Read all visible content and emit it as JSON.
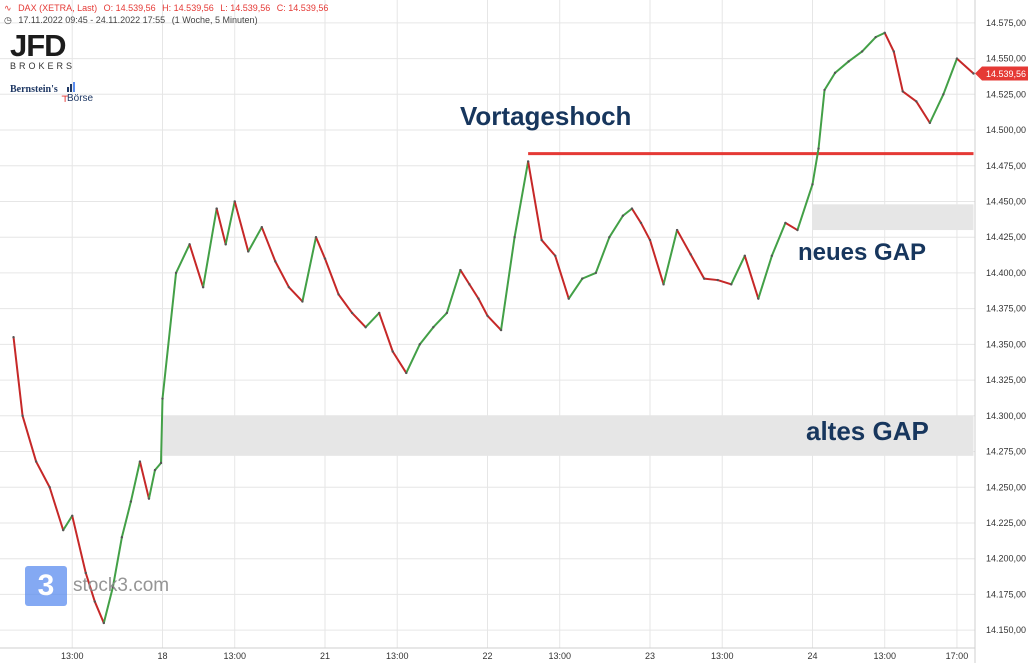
{
  "header": {
    "symbol": "DAX (XETRA, Last)",
    "open": "O: 14.539,56",
    "high": "H: 14.539,56",
    "low": "L: 14.539,56",
    "close": "C: 14.539,56",
    "range": "17.11.2022 09:45 - 24.11.2022 17:55",
    "interval": "(1 Woche, 5 Minuten)"
  },
  "branding": {
    "jfd": "JFD",
    "brokers": "BROKERS",
    "bernstein": "Bernstein's",
    "boerse": "Börse",
    "watermark_number": "3",
    "watermark_text": "stock3.com"
  },
  "colors": {
    "up": "#43a047",
    "down": "#c62828",
    "line": "#e53935",
    "gap": "#e6e6e6",
    "annotation": "#17365d",
    "grid": "#e6e6e6",
    "price_tag": "#e53935"
  },
  "chart_data": {
    "type": "line",
    "title": "",
    "xlabel": "",
    "ylabel": "",
    "ylim": [
      14137.5,
      14587.5
    ],
    "yticks": [
      "14.575,00",
      "14.550,00",
      "14.525,00",
      "14.500,00",
      "14.475,00",
      "14.450,00",
      "14.425,00",
      "14.400,00",
      "14.375,00",
      "14.350,00",
      "14.325,00",
      "14.300,00",
      "14.275,00",
      "14.250,00",
      "14.225,00",
      "14.200,00",
      "14.175,00",
      "14.150,00"
    ],
    "ytick_values": [
      14575,
      14550,
      14525,
      14500,
      14475,
      14450,
      14425,
      14400,
      14375,
      14350,
      14325,
      14300,
      14275,
      14250,
      14225,
      14200,
      14175,
      14150
    ],
    "xticks": [
      "13:00",
      "18",
      "13:00",
      "21",
      "13:00",
      "22",
      "13:00",
      "23",
      "13:00",
      "24",
      "13:00",
      "17:00"
    ],
    "current_price": "14.539,56",
    "series": [
      {
        "points": [
          [
            "17.11. 09:45",
            14355
          ],
          [
            "17.11. 10:15",
            14300
          ],
          [
            "17.11. 11:00",
            14268
          ],
          [
            "17.11. 11:45",
            14250
          ],
          [
            "17.11. 12:30",
            14220
          ],
          [
            "17.11. 13:00",
            14230
          ],
          [
            "17.11. 13:45",
            14190
          ],
          [
            "17.11. 14:15",
            14170
          ],
          [
            "17.11. 14:45",
            14155
          ],
          [
            "17.11. 15:15",
            14180
          ],
          [
            "17.11. 15:45",
            14215
          ],
          [
            "17.11. 16:15",
            14240
          ],
          [
            "17.11. 16:45",
            14268
          ],
          [
            "17.11. 17:15",
            14242
          ],
          [
            "17.11. 17:35",
            14262
          ],
          [
            "17.11. 17:55",
            14267
          ],
          [
            "18.11. 09:00",
            14312
          ],
          [
            "18.11. 09:45",
            14400
          ],
          [
            "18.11. 10:30",
            14420
          ],
          [
            "18.11. 11:15",
            14390
          ],
          [
            "18.11. 12:00",
            14445
          ],
          [
            "18.11. 12:30",
            14420
          ],
          [
            "18.11. 13:00",
            14450
          ],
          [
            "18.11. 13:45",
            14415
          ],
          [
            "18.11. 14:30",
            14432
          ],
          [
            "18.11. 15:15",
            14408
          ],
          [
            "18.11. 16:00",
            14390
          ],
          [
            "18.11. 16:45",
            14380
          ],
          [
            "18.11. 17:30",
            14425
          ],
          [
            "21.11. 09:00",
            14410
          ],
          [
            "21.11. 09:45",
            14385
          ],
          [
            "21.11. 10:30",
            14372
          ],
          [
            "21.11. 11:15",
            14362
          ],
          [
            "21.11. 12:00",
            14372
          ],
          [
            "21.11. 12:45",
            14345
          ],
          [
            "21.11. 13:30",
            14330
          ],
          [
            "21.11. 14:15",
            14350
          ],
          [
            "21.11. 15:00",
            14362
          ],
          [
            "21.11. 15:45",
            14372
          ],
          [
            "21.11. 16:30",
            14402
          ],
          [
            "21.11. 17:00",
            14392
          ],
          [
            "21.11. 17:30",
            14382
          ],
          [
            "22.11. 09:00",
            14370
          ],
          [
            "22.11. 09:45",
            14360
          ],
          [
            "22.11. 10:30",
            14425
          ],
          [
            "22.11. 11:15",
            14478
          ],
          [
            "22.11. 12:00",
            14423
          ],
          [
            "22.11. 12:45",
            14412
          ],
          [
            "22.11. 13:30",
            14382
          ],
          [
            "22.11. 14:15",
            14396
          ],
          [
            "22.11. 15:00",
            14400
          ],
          [
            "22.11. 15:45",
            14425
          ],
          [
            "22.11. 16:30",
            14440
          ],
          [
            "22.11. 17:00",
            14445
          ],
          [
            "22.11. 17:30",
            14435
          ],
          [
            "23.11. 09:00",
            14423
          ],
          [
            "23.11. 09:45",
            14392
          ],
          [
            "23.11. 10:30",
            14430
          ],
          [
            "23.11. 11:15",
            14413
          ],
          [
            "23.11. 12:00",
            14396
          ],
          [
            "23.11. 12:45",
            14395
          ],
          [
            "23.11. 13:30",
            14392
          ],
          [
            "23.11. 14:15",
            14412
          ],
          [
            "23.11. 15:00",
            14382
          ],
          [
            "23.11. 15:45",
            14412
          ],
          [
            "23.11. 16:30",
            14435
          ],
          [
            "23.11. 17:10",
            14430
          ],
          [
            "24.11. 09:00",
            14462
          ],
          [
            "24.11. 09:20",
            14487
          ],
          [
            "24.11. 09:40",
            14528
          ],
          [
            "24.11. 10:15",
            14540
          ],
          [
            "24.11. 11:00",
            14548
          ],
          [
            "24.11. 11:45",
            14555
          ],
          [
            "24.11. 12:30",
            14565
          ],
          [
            "24.11. 13:00",
            14568
          ],
          [
            "24.11. 13:30",
            14555
          ],
          [
            "24.11. 14:00",
            14527
          ],
          [
            "24.11. 14:45",
            14520
          ],
          [
            "24.11. 15:30",
            14505
          ],
          [
            "24.11. 16:15",
            14525
          ],
          [
            "24.11. 17:00",
            14550
          ],
          [
            "24.11. 17:55",
            14539.56
          ]
        ]
      }
    ],
    "annotations": [
      {
        "label": "Vortageshoch",
        "type": "horizontal-line",
        "from": "22.11. 11:15",
        "to": "24.11. 17:55",
        "y": 14483.5
      },
      {
        "label": "neues GAP",
        "type": "band",
        "from": "24.11. 09:00",
        "to": "24.11. 17:55",
        "y": [
          14430,
          14448
        ]
      },
      {
        "label": "altes GAP",
        "type": "band",
        "from": "18.11. 09:00",
        "to": "24.11. 17:55",
        "y": [
          14272,
          14300
        ]
      }
    ]
  }
}
